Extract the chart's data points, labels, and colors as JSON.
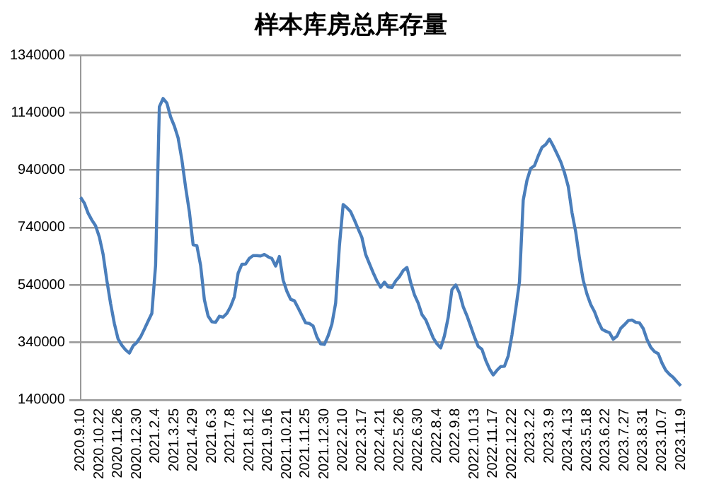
{
  "chart_data": {
    "type": "line",
    "title": "样本库房总库存量",
    "categories": [
      "2020.9.10",
      null,
      null,
      null,
      null,
      "2020.10.22",
      null,
      null,
      null,
      null,
      "2020.11.26",
      null,
      null,
      null,
      null,
      "2020.12.30",
      null,
      null,
      null,
      null,
      "2021.2.4",
      null,
      null,
      null,
      null,
      "2021.3.25",
      null,
      null,
      null,
      null,
      "2021.4.29",
      null,
      null,
      null,
      null,
      "2021.6.3",
      null,
      null,
      null,
      null,
      "2021.7.8",
      null,
      null,
      null,
      null,
      "2021.8.12",
      null,
      null,
      null,
      null,
      "2021.9.16",
      null,
      null,
      null,
      null,
      "2021.10.21",
      null,
      null,
      null,
      null,
      "2021.11.25",
      null,
      null,
      null,
      null,
      "2021.12.30",
      null,
      null,
      null,
      null,
      "2022.2.10",
      null,
      null,
      null,
      null,
      "2022.3.17",
      null,
      null,
      null,
      null,
      "2022.4.21",
      null,
      null,
      null,
      null,
      "2022.5.26",
      null,
      null,
      null,
      null,
      "2022.6.30",
      null,
      null,
      null,
      null,
      "2022.8.4",
      null,
      null,
      null,
      null,
      "2022.9.8",
      null,
      null,
      null,
      null,
      "2022.10.13",
      null,
      null,
      null,
      null,
      "2022.11.17",
      null,
      null,
      null,
      null,
      "2022.12.22",
      null,
      null,
      null,
      null,
      "2023.2.2",
      null,
      null,
      null,
      null,
      "2023.3.9",
      null,
      null,
      null,
      null,
      "2023.4.13",
      null,
      null,
      null,
      null,
      "2023.5.18",
      null,
      null,
      null,
      null,
      "2023.6.22",
      null,
      null,
      null,
      null,
      "2023.7.27",
      null,
      null,
      null,
      null,
      "2023.8.31",
      null,
      null,
      null,
      null,
      "2023.10.7",
      null,
      null,
      null,
      null,
      "2023.11.9"
    ],
    "series": [
      {
        "color": "#4a7ebb",
        "values": [
          845000,
          825000,
          790000,
          766000,
          746000,
          707000,
          647000,
          556000,
          476000,
          406000,
          352000,
          330000,
          314000,
          303000,
          328000,
          340000,
          359000,
          386000,
          414000,
          441000,
          609000,
          1160000,
          1189000,
          1173000,
          1125000,
          1093000,
          1052000,
          976000,
          880000,
          795000,
          680000,
          677000,
          608000,
          489000,
          432000,
          412000,
          410000,
          431000,
          428000,
          441000,
          465000,
          499000,
          581000,
          612000,
          613000,
          633000,
          642000,
          642000,
          641000,
          646000,
          638000,
          632000,
          606000,
          639000,
          557000,
          518000,
          490000,
          485000,
          460000,
          434000,
          408000,
          406000,
          397000,
          359000,
          335000,
          333000,
          363000,
          404000,
          477000,
          676000,
          820000,
          809000,
          795000,
          766000,
          735000,
          705000,
          646000,
          614000,
          583000,
          554000,
          532000,
          550000,
          533000,
          531000,
          554000,
          569000,
          590000,
          601000,
          549000,
          506000,
          477000,
          437000,
          419000,
          388000,
          356000,
          335000,
          321000,
          363000,
          427000,
          524000,
          540000,
          512000,
          464000,
          433000,
          396000,
          359000,
          326000,
          316000,
          278000,
          248000,
          227000,
          243000,
          256000,
          257000,
          293000,
          366000,
          455000,
          551000,
          835000,
          904000,
          946000,
          955000,
          989000,
          1019000,
          1029000,
          1048000,
          1024000,
          997000,
          969000,
          931000,
          883000,
          792000,
          724000,
          633000,
          556000,
          508000,
          472000,
          447000,
          413000,
          386000,
          379000,
          374000,
          351000,
          362000,
          389000,
          402000,
          416000,
          418000,
          410000,
          408000,
          388000,
          350000,
          323000,
          308000,
          301000,
          268000,
          243000,
          229000,
          218000,
          203000,
          189000
        ]
      }
    ],
    "ylim": [
      140000,
      1340000
    ],
    "yticks": [
      140000,
      340000,
      540000,
      740000,
      940000,
      1140000,
      1340000
    ],
    "grid": "y",
    "legend": false,
    "marker": "none",
    "line_style": "solid"
  }
}
